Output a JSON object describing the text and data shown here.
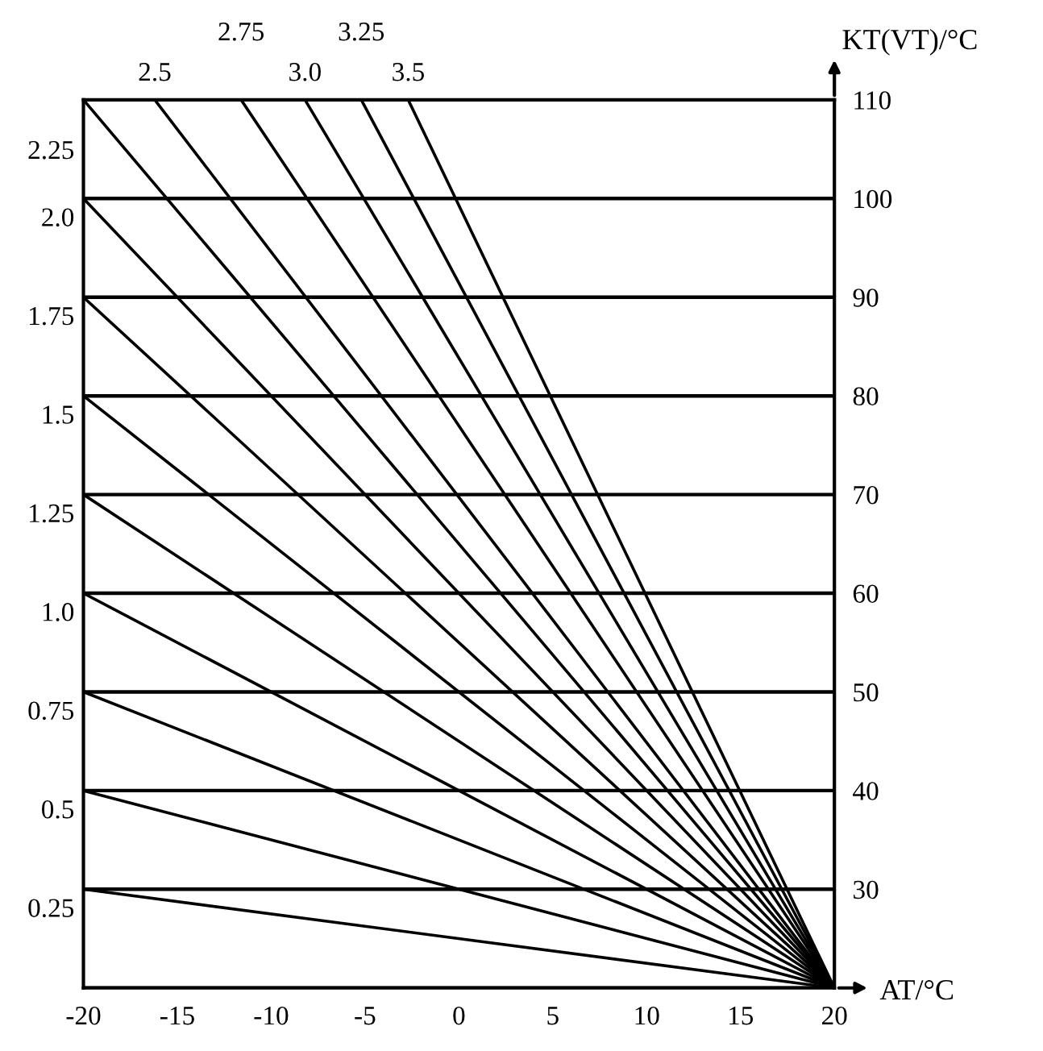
{
  "chart_data": {
    "type": "line",
    "xlabel": "AT/°C",
    "ylabel": "KT(VT)/°C",
    "xlim": [
      -20,
      20
    ],
    "ylim": [
      20,
      110
    ],
    "xticks": [
      -20,
      -15,
      -10,
      -5,
      0,
      5,
      10,
      15,
      20
    ],
    "yticks": [
      {
        "value": 20,
        "label": null
      },
      30,
      40,
      50,
      60,
      70,
      80,
      90,
      100,
      110
    ],
    "grid": "y",
    "line_style": "solid",
    "series": [
      {
        "color": "#000000",
        "x": [
          -20,
          20
        ],
        "values": [
          30,
          20
        ]
      },
      {
        "color": "#000000",
        "x": [
          -20,
          20
        ],
        "values": [
          40,
          20
        ]
      },
      {
        "color": "#000000",
        "x": [
          -20,
          20
        ],
        "values": [
          50,
          20
        ]
      },
      {
        "color": "#000000",
        "x": [
          -20,
          20
        ],
        "values": [
          60,
          20
        ]
      },
      {
        "color": "#000000",
        "x": [
          -20,
          20
        ],
        "values": [
          70,
          20
        ]
      },
      {
        "color": "#000000",
        "x": [
          -20,
          20
        ],
        "values": [
          80,
          20
        ]
      },
      {
        "color": "#000000",
        "x": [
          -20,
          20
        ],
        "values": [
          90,
          20
        ]
      },
      {
        "color": "#000000",
        "x": [
          -20,
          20
        ],
        "values": [
          100,
          20
        ]
      },
      {
        "color": "#000000",
        "x": [
          -20,
          20
        ],
        "values": [
          110,
          20
        ]
      },
      {
        "color": "#000000",
        "x": [
          -16.2,
          20
        ],
        "values": [
          110,
          20
        ]
      },
      {
        "color": "#000000",
        "x": [
          -11.6,
          20
        ],
        "values": [
          110,
          20
        ]
      },
      {
        "color": "#000000",
        "x": [
          -8.2,
          20
        ],
        "values": [
          110,
          20
        ]
      },
      {
        "color": "#000000",
        "x": [
          -5.2,
          20
        ],
        "values": [
          110,
          20
        ]
      },
      {
        "color": "#000000",
        "x": [
          -2.7,
          20
        ],
        "values": [
          110,
          20
        ]
      }
    ],
    "annotations": [
      {
        "text": "0.25",
        "x": -20,
        "y": 30
      },
      {
        "text": "0.5",
        "x": -20,
        "y": 40
      },
      {
        "text": "0.75",
        "x": -20,
        "y": 50
      },
      {
        "text": "1.0",
        "x": -20,
        "y": 60
      },
      {
        "text": "1.25",
        "x": -20,
        "y": 70
      },
      {
        "text": "1.5",
        "x": -20,
        "y": 80
      },
      {
        "text": "1.75",
        "x": -20,
        "y": 90
      },
      {
        "text": "2.0",
        "x": -20,
        "y": 100
      },
      {
        "text": "2.25",
        "x": -20,
        "y": 110
      },
      {
        "text": "2.5",
        "x": -16.2,
        "y": 110
      },
      {
        "text": "2.75",
        "x": -11.6,
        "y": 110
      },
      {
        "text": "3.0",
        "x": -8.2,
        "y": 110
      },
      {
        "text": "3.25",
        "x": -5.2,
        "y": 110
      },
      {
        "text": "3.5",
        "x": -2.7,
        "y": 110
      }
    ]
  }
}
